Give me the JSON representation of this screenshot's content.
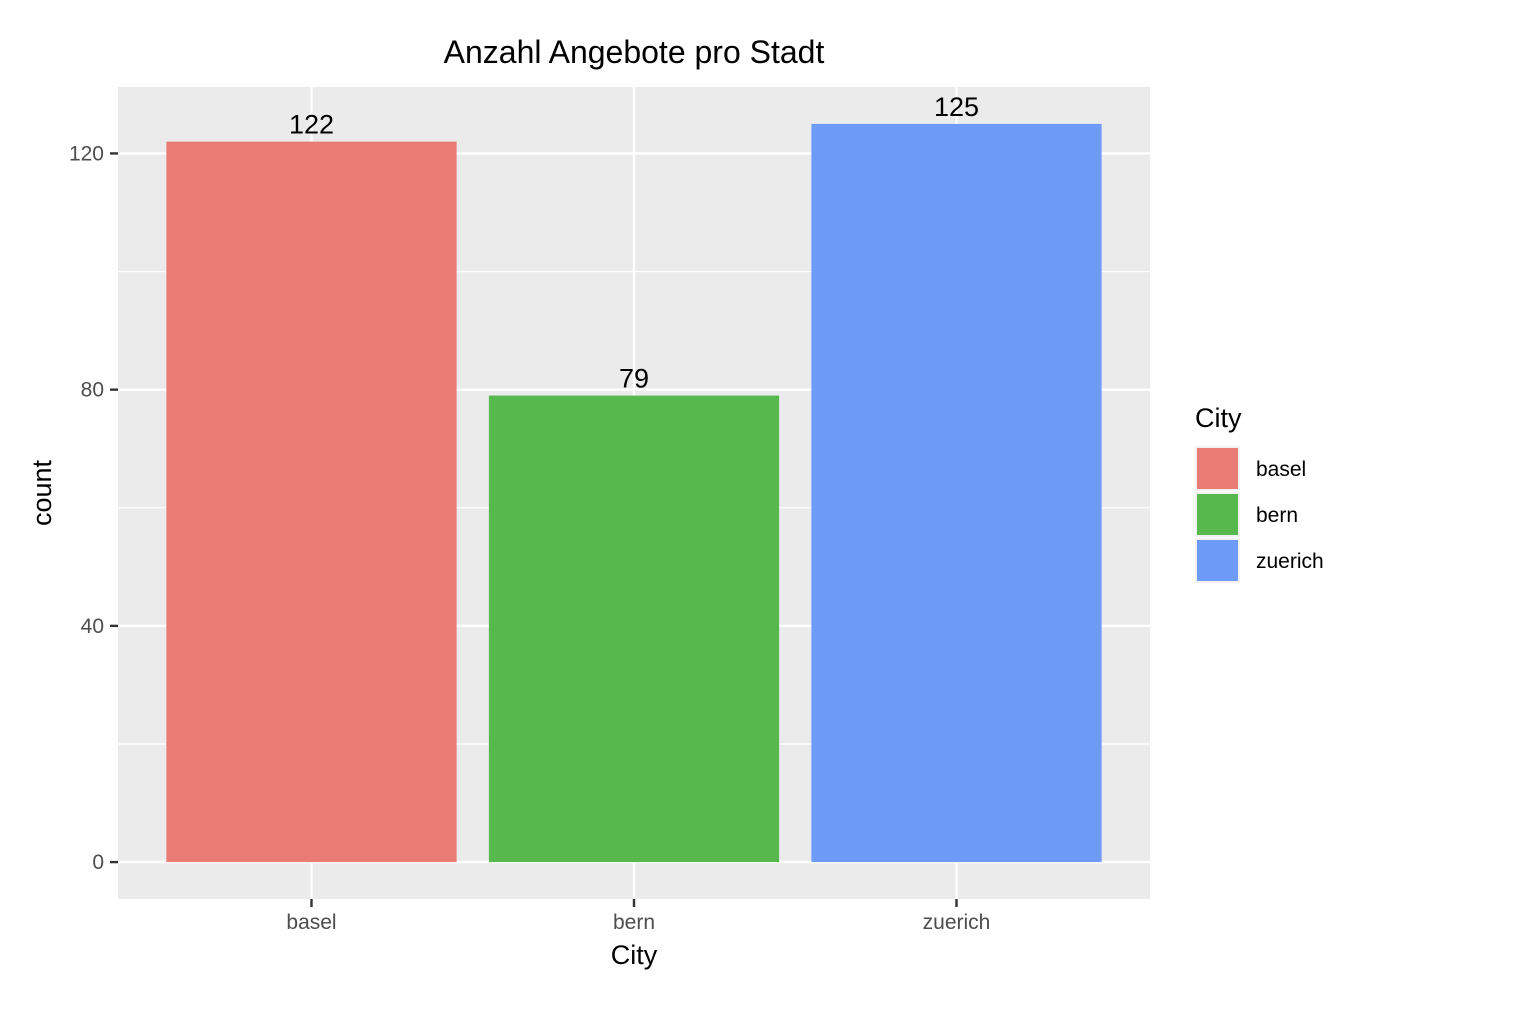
{
  "chart_data": {
    "type": "bar",
    "title": "Anzahl Angebote pro Stadt",
    "xlabel": "City",
    "ylabel": "count",
    "categories": [
      "basel",
      "bern",
      "zuerich"
    ],
    "values": [
      122,
      79,
      125
    ],
    "data_labels": [
      "122",
      "79",
      "125"
    ],
    "colors": [
      "#E87B73",
      "#57B84E",
      "#6F9BF8"
    ],
    "ylim": [
      -6.25,
      131.25
    ],
    "yticks": [
      0,
      40,
      80,
      120
    ],
    "ytick_labels": [
      "0",
      "40",
      "80",
      "120"
    ],
    "grid": true,
    "panel_background": "#EBEBEB",
    "grid_color": "#FFFFFF",
    "legend": {
      "title": "City",
      "position": "right",
      "entries": [
        "basel",
        "bern",
        "zuerich"
      ]
    }
  }
}
